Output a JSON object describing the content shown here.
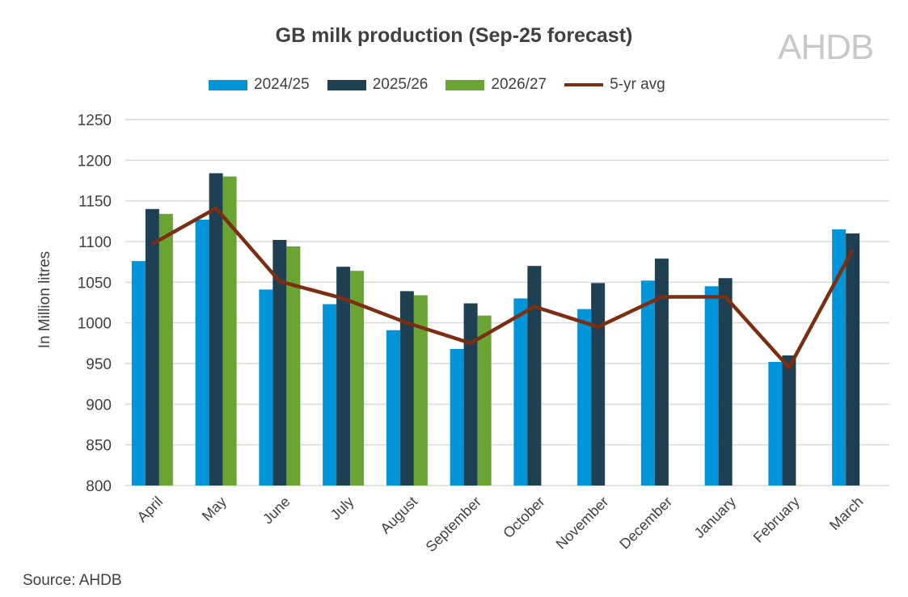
{
  "chart_data": {
    "type": "bar",
    "title": "GB milk production (Sep-25 forecast)",
    "ylabel": "In Million litres",
    "xlabel": "",
    "ylim": [
      800,
      1250
    ],
    "ytick_step": 50,
    "yticks": [
      "800",
      "850",
      "900",
      "950",
      "1000",
      "1050",
      "1100",
      "1150",
      "1200",
      "1250"
    ],
    "grid": true,
    "legend_position": "top",
    "categories": [
      "April",
      "May",
      "June",
      "July",
      "August",
      "September",
      "October",
      "November",
      "December",
      "January",
      "February",
      "March"
    ],
    "series": [
      {
        "name": "2024/25",
        "kind": "bar",
        "color": "#0095d8",
        "values": [
          1076,
          1127,
          1041,
          1023,
          991,
          968,
          1030,
          1017,
          1052,
          1045,
          952,
          1115
        ]
      },
      {
        "name": "2025/26",
        "kind": "bar",
        "color": "#1f3f52",
        "values": [
          1140,
          1184,
          1102,
          1069,
          1039,
          1024,
          1070,
          1049,
          1079,
          1055,
          960,
          1110
        ]
      },
      {
        "name": "2026/27",
        "kind": "bar",
        "color": "#6aa534",
        "values": [
          1134,
          1180,
          1094,
          1064,
          1034,
          1009,
          null,
          null,
          null,
          null,
          null,
          null
        ]
      },
      {
        "name": "5-yr avg",
        "kind": "line",
        "color": "#7b2e12",
        "values": [
          1097,
          1141,
          1051,
          1030,
          1000,
          975,
          1020,
          995,
          1032,
          1032,
          945,
          1090
        ]
      }
    ]
  },
  "logo": "AHDB",
  "source": "Source: AHDB"
}
